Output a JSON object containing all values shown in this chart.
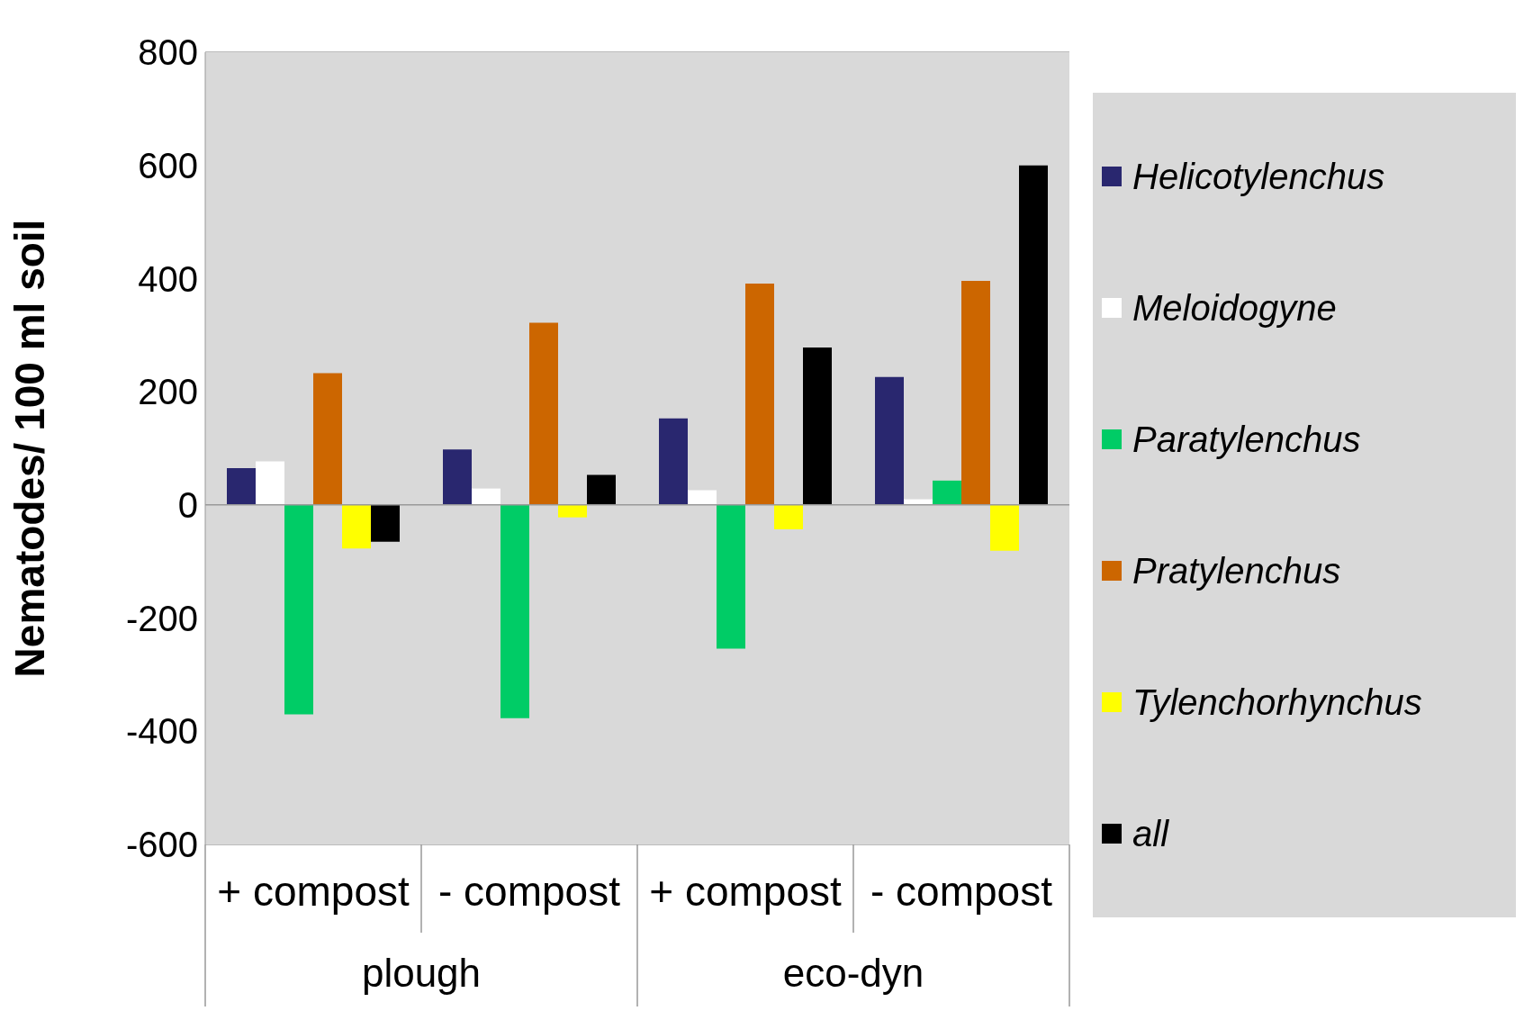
{
  "chart_data": {
    "type": "bar",
    "ylabel": "Nematodes/ 100 ml soil",
    "categories": [
      "+ compost",
      "- compost",
      "+ compost",
      "- compost"
    ],
    "annotations": [
      "plough",
      "eco-dyn"
    ],
    "series": [
      {
        "name": "Helicotylenchus",
        "color": "#29276f",
        "values": [
          65,
          98,
          153,
          226
        ]
      },
      {
        "name": "Meloidogyne",
        "color": "#ffffff",
        "values": [
          77,
          29,
          26,
          10
        ]
      },
      {
        "name": "Paratylenchus",
        "color": "#00cc66",
        "values": [
          -370,
          -377,
          -254,
          43
        ]
      },
      {
        "name": "Pratylenchus",
        "color": "#cc6600",
        "values": [
          233,
          322,
          391,
          396
        ]
      },
      {
        "name": "Tylenchorhynchus",
        "color": "#ffff00",
        "values": [
          -77,
          -22,
          -43,
          -81
        ]
      },
      {
        "name": "all",
        "color": "#000000",
        "values": [
          -65,
          53,
          278,
          600
        ]
      }
    ],
    "ylim": [
      -600,
      800
    ],
    "yticks": [
      -600,
      -400,
      -200,
      0,
      200,
      400,
      600,
      800
    ],
    "grid": "y",
    "legend": "right"
  }
}
